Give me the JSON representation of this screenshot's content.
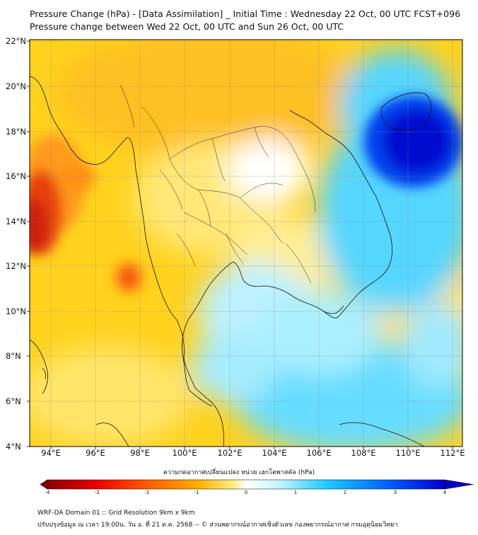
{
  "title_line1": "Pressure Change (hPa) - [Data Assimilation] _ Initial Time : Wednesday 22 Oct, 00 UTC FCST+096",
  "title_line2": "Pressure change between Wed 22 Oct, 00 UTC and Sun 26 Oct, 00 UTC",
  "lat_labels": [
    "22°N",
    "20°N",
    "18°N",
    "16°N",
    "14°N",
    "12°N",
    "10°N",
    "8°N",
    "6°N",
    "4°N"
  ],
  "lon_labels": [
    "94°E",
    "96°E",
    "98°E",
    "100°E",
    "102°E",
    "104°E",
    "106°E",
    "108°E",
    "110°E",
    "112°E"
  ],
  "colorbar": {
    "title": "ความกดอากาศเปลี่ยนแปลง หน่วย เฮกโตพาสคัล (hPa)",
    "ticks": [
      "-4",
      "-3",
      "-2",
      "-1",
      "0",
      "1",
      "2",
      "3",
      "4"
    ],
    "colors": [
      "#8b0000",
      "#e60000",
      "#ff5a00",
      "#ffb000",
      "#ffee88",
      "#ffffff",
      "#9ff0ff",
      "#22ccff",
      "#0066ff",
      "#0000cc"
    ]
  },
  "footer_line1": "WRF-DA Domain 01 :: Grid Resolution 9km x 9km",
  "footer_line2": "ปรับปรุงข้อมูล ณ เวลา 19:00น. วัน อ. ที่ 21 ต.ค. 2568 -- © ส่วนพยากรณ์อากาศเชิงตัวเลข กองพยากรณ์อากาศ กรมอุตุนิยมวิทยา"
}
